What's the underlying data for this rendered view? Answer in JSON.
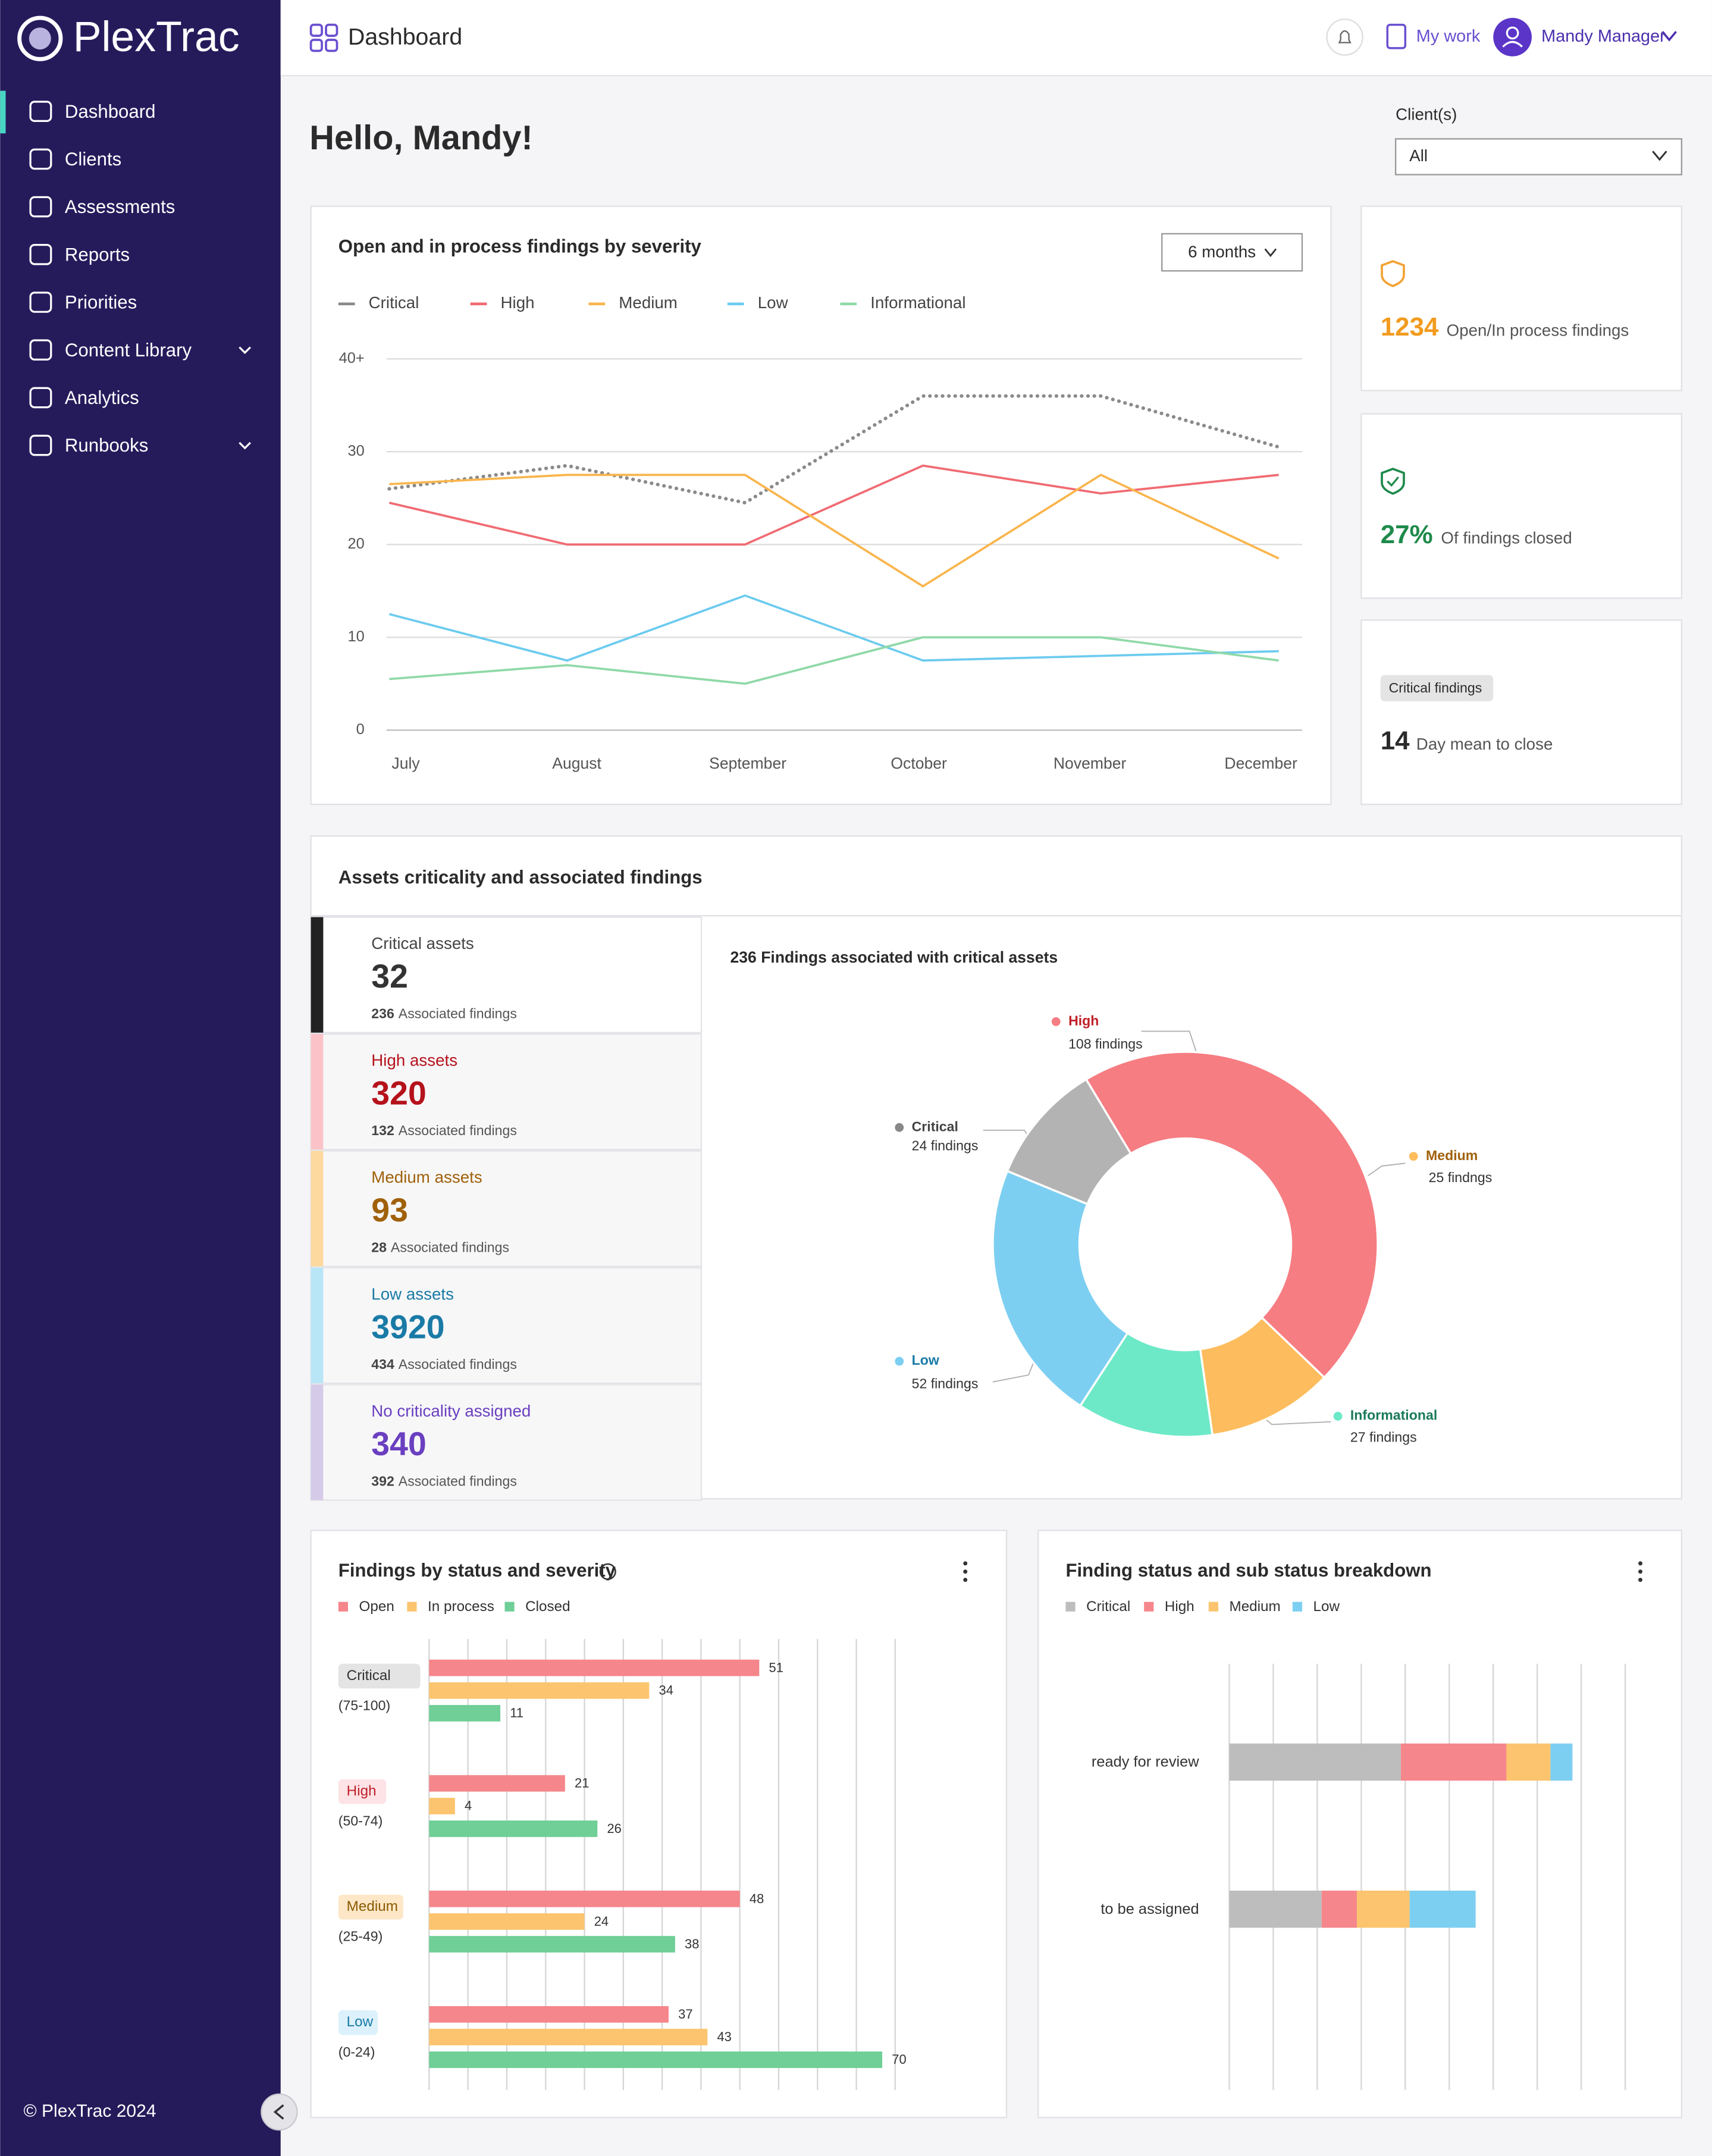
{
  "brand": "PlexTrac",
  "nav": {
    "items": [
      "Dashboard",
      "Clients",
      "Assessments",
      "Reports",
      "Priorities",
      "Content Library",
      "Analytics",
      "Runbooks"
    ]
  },
  "footer": "© PlexTrac 2024",
  "header": {
    "title": "Dashboard",
    "my_work": "My work",
    "user": "Mandy Manager"
  },
  "greeting": "Hello, Mandy!",
  "client_filter": {
    "label": "Client(s)",
    "value": "All"
  },
  "stats": [
    {
      "value": 1234,
      "label": "Open/In process findings"
    },
    {
      "value": 27,
      "value_label": "27%",
      "label": "Of findings closed"
    },
    {
      "badge": "Critical findings",
      "value": 14,
      "label": "Day mean to close"
    }
  ],
  "assets": {
    "title": "Assets criticality and associated findings",
    "findings_label": "Associated findings",
    "items": [
      {
        "label": "Critical assets",
        "count": 32,
        "findings": 236
      },
      {
        "label": "High assets",
        "count": 320,
        "findings": 132
      },
      {
        "label": "Medium assets",
        "count": 93,
        "findings": 28
      },
      {
        "label": "Low assets",
        "count": 3920,
        "findings": 434
      },
      {
        "label": "No criticality assigned",
        "count": 340,
        "findings": 392
      }
    ]
  },
  "chart_data": [
    {
      "type": "line",
      "title": "Open and in process findings by severity",
      "range_selector": "6 months",
      "categories": [
        "July",
        "August",
        "September",
        "October",
        "November",
        "December"
      ],
      "series": [
        {
          "name": "Critical",
          "color": "#8a8a8a",
          "values": [
            26,
            28.5,
            24.5,
            36,
            36,
            30.5
          ]
        },
        {
          "name": "High",
          "color": "#f06b73",
          "values": [
            24.5,
            20,
            20,
            28.5,
            25.5,
            27.5
          ]
        },
        {
          "name": "Medium",
          "color": "#f9b54c",
          "values": [
            26.5,
            27.5,
            27.5,
            15.5,
            27.5,
            18.5
          ]
        },
        {
          "name": "Low",
          "color": "#6ccbef",
          "values": [
            12.5,
            7.5,
            14.5,
            7.5,
            8,
            8.5
          ]
        },
        {
          "name": "Informational",
          "color": "#8fd9a8",
          "values": [
            5.5,
            7,
            5,
            10,
            10,
            7.5
          ]
        }
      ],
      "ylim": [
        0,
        40
      ],
      "yticks": [
        0,
        10,
        20,
        30,
        {
          "value": 40,
          "label": "40+"
        }
      ],
      "grid": true
    },
    {
      "type": "pie",
      "title": "236 Findings associated with critical assets",
      "categories": [
        "High",
        "Medium",
        "Informational",
        "Low",
        "Critical"
      ],
      "values": [
        108,
        25,
        27,
        52,
        24
      ],
      "value_labels": [
        "108 findings",
        "25 findngs",
        "27 findings",
        "52 findings",
        "24 findings"
      ],
      "colors": [
        "#f67d82",
        "#fdbd5e",
        "#6de9c7",
        "#7dcff2",
        "#b3b3b3"
      ],
      "label_colors": [
        "#c0202a",
        "#a0610b",
        "#1a7a5a",
        "#1a7aa6",
        "#444444"
      ]
    },
    {
      "type": "bar",
      "title": "Findings by status and severity",
      "categories": [
        "Critical",
        "High",
        "Medium",
        "Low"
      ],
      "category_ranges": [
        "(75-100)",
        "(50-74)",
        "(25-49)",
        "(0-24)"
      ],
      "series": [
        {
          "name": "Open",
          "color": "#f5868b",
          "values": [
            51,
            21,
            48,
            37
          ]
        },
        {
          "name": "In process",
          "color": "#fcc46e",
          "values": [
            34,
            4,
            24,
            43
          ]
        },
        {
          "name": "Closed",
          "color": "#6fcf97",
          "values": [
            11,
            26,
            38,
            70
          ]
        }
      ],
      "xlim": [
        0,
        72
      ],
      "xticks": [
        0,
        6,
        12,
        18,
        24,
        30,
        36,
        42,
        48,
        54,
        60,
        66,
        72
      ],
      "grid": true
    },
    {
      "type": "stacked_bar",
      "title": "Finding status and sub status breakdown",
      "categories": [
        "ready for review",
        "to be assigned"
      ],
      "series": [
        {
          "name": "Critical",
          "color": "#bdbdbd",
          "values": [
            39,
            21
          ]
        },
        {
          "name": "High",
          "color": "#f5868b",
          "values": [
            24,
            8
          ]
        },
        {
          "name": "Medium",
          "color": "#fcc46e",
          "values": [
            10,
            12
          ]
        },
        {
          "name": "Low",
          "color": "#7dcff2",
          "values": [
            5,
            15
          ]
        }
      ],
      "xlim": [
        0,
        90
      ],
      "xticks": [
        0,
        10,
        20,
        30,
        40,
        50,
        60,
        70,
        80,
        90
      ],
      "grid": true
    }
  ]
}
